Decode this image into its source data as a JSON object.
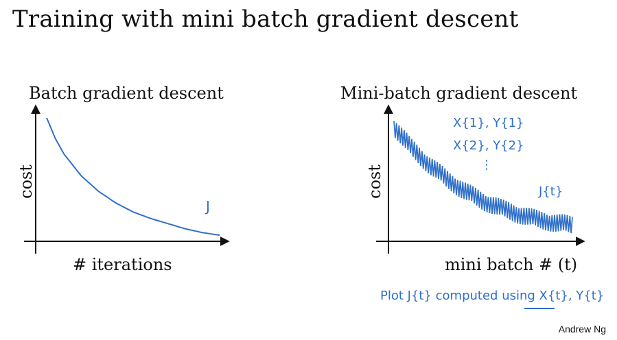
{
  "slide": {
    "title": "Training with mini batch gradient descent",
    "credit": "Andrew Ng"
  },
  "batch_plot": {
    "title": "Batch gradient descent",
    "ylabel": "cost",
    "xlabel": "# iterations",
    "curve_label": "J"
  },
  "minibatch_plot": {
    "title": "Mini-batch gradient descent",
    "ylabel": "cost",
    "xlabel": "mini batch # (t)",
    "curve_label": "J{t}",
    "annotations": [
      "X{1}, Y{1}",
      "X{2}, Y{2}",
      "⋮"
    ],
    "footnote": "Plot J{t} computed using X{t}, Y{t}"
  },
  "colors": {
    "ink": "#2f6fc9",
    "axis": "#111111",
    "text": "#111111"
  },
  "chart_data": [
    {
      "type": "line",
      "title": "Batch gradient descent",
      "xlabel": "# iterations",
      "ylabel": "cost",
      "series": [
        {
          "name": "J",
          "shape": "smooth monotone decreasing",
          "x": [
            0,
            0.05,
            0.1,
            0.2,
            0.3,
            0.4,
            0.5,
            0.6,
            0.7,
            0.8,
            0.9,
            1.0
          ],
          "values": [
            1.0,
            0.84,
            0.72,
            0.55,
            0.43,
            0.34,
            0.27,
            0.22,
            0.18,
            0.14,
            0.11,
            0.09
          ]
        }
      ]
    },
    {
      "type": "line",
      "title": "Mini-batch gradient descent",
      "xlabel": "mini batch # (t)",
      "ylabel": "cost",
      "series": [
        {
          "name": "J{t}",
          "shape": "noisy decreasing trend with oscillation",
          "x": [
            0,
            0.1,
            0.2,
            0.3,
            0.4,
            0.5,
            0.6,
            0.7,
            0.8,
            0.9,
            1.0
          ],
          "values": [
            1.0,
            0.82,
            0.68,
            0.56,
            0.46,
            0.38,
            0.32,
            0.27,
            0.23,
            0.2,
            0.18
          ],
          "noise_amplitude": 0.08
        }
      ]
    }
  ]
}
